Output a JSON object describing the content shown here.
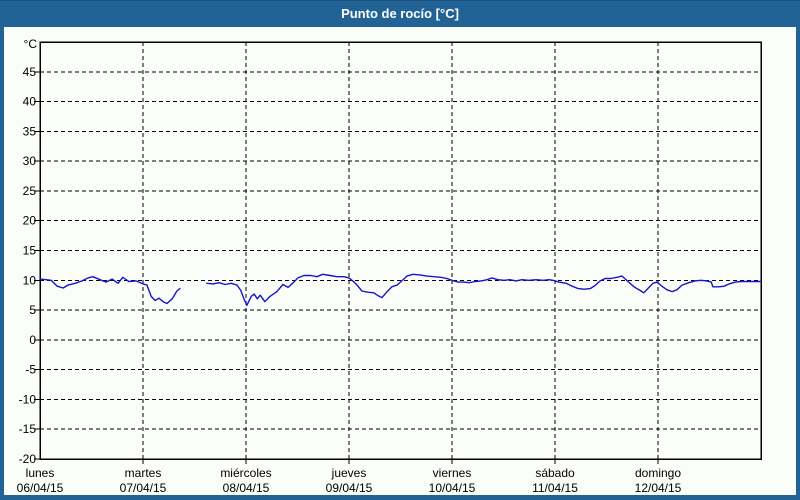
{
  "window": {
    "title": "Punto de rocío [°C]"
  },
  "colors": {
    "frame": "#206394",
    "frame_edge": "#17537d",
    "content_background": "#fbfdf8",
    "grid": "#000000",
    "text": "#000000",
    "title_text": "#ffffff",
    "line": "#1515cd"
  },
  "chart_data": {
    "type": "line",
    "title": "Punto de rocío [°C]",
    "ylabel": "°C",
    "ylim": [
      -20,
      50
    ],
    "y_ticks": [
      45,
      40,
      35,
      30,
      25,
      20,
      15,
      10,
      5,
      0,
      -5,
      -10,
      -15,
      -20
    ],
    "grid": "dashed",
    "legend": "none",
    "x_range_hours": [
      0,
      168
    ],
    "x_days": [
      {
        "name": "lunes",
        "date": "06/04/15"
      },
      {
        "name": "martes",
        "date": "07/04/15"
      },
      {
        "name": "miércoles",
        "date": "08/04/15"
      },
      {
        "name": "jueves",
        "date": "09/04/15"
      },
      {
        "name": "viernes",
        "date": "10/04/15"
      },
      {
        "name": "sábado",
        "date": "11/04/15"
      },
      {
        "name": "domingo",
        "date": "12/04/15"
      }
    ],
    "series": [
      {
        "name": "Punto de rocío",
        "color": "#1515cd",
        "points": [
          [
            0,
            10.2
          ],
          [
            1.4,
            10.1
          ],
          [
            2.6,
            10
          ],
          [
            4,
            9
          ],
          [
            5.4,
            8.7
          ],
          [
            6.5,
            9.2
          ],
          [
            8.2,
            9.5
          ],
          [
            9.8,
            9.9
          ],
          [
            11.2,
            10.4
          ],
          [
            12.3,
            10.6
          ],
          [
            14,
            10.1
          ],
          [
            15.4,
            9.7
          ],
          [
            16.8,
            10.2
          ],
          [
            18.2,
            9.5
          ],
          [
            19.3,
            10.5
          ],
          [
            20.7,
            9.8
          ],
          [
            22.4,
            9.9
          ],
          [
            24,
            9.4
          ],
          [
            24.9,
            9.2
          ],
          [
            25.9,
            7.3
          ],
          [
            26.8,
            6.6
          ],
          [
            27.7,
            7
          ],
          [
            28.7,
            6.4
          ],
          [
            29.6,
            6.1
          ],
          [
            30.8,
            6.9
          ],
          [
            31.9,
            8.2
          ],
          [
            32.6,
            8.6
          ],
          null,
          [
            38.9,
            9.5
          ],
          [
            40.3,
            9.4
          ],
          [
            41.7,
            9.6
          ],
          [
            43.1,
            9.3
          ],
          [
            44.5,
            9.5
          ],
          [
            45.9,
            9.2
          ],
          [
            46.8,
            8.3
          ],
          [
            47.5,
            6.9
          ],
          [
            48.2,
            5.8
          ],
          [
            49.2,
            7.3
          ],
          [
            49.9,
            7.7
          ],
          [
            50.6,
            6.9
          ],
          [
            51.3,
            7.5
          ],
          [
            52.4,
            6.4
          ],
          [
            53.6,
            7.3
          ],
          [
            55.2,
            8.1
          ],
          [
            56.6,
            9.3
          ],
          [
            57.8,
            8.8
          ],
          [
            59,
            9.6
          ],
          [
            60.1,
            10.4
          ],
          [
            61.5,
            10.8
          ],
          [
            63.1,
            10.8
          ],
          [
            64.5,
            10.6
          ],
          [
            65.9,
            11
          ],
          [
            67.6,
            10.8
          ],
          [
            69.2,
            10.6
          ],
          [
            70.8,
            10.6
          ],
          [
            72,
            10.4
          ],
          [
            73.2,
            9.7
          ],
          [
            74.1,
            9
          ],
          [
            75,
            8.2
          ],
          [
            76.4,
            8
          ],
          [
            77.8,
            7.9
          ],
          [
            78.8,
            7.4
          ],
          [
            79.7,
            7.1
          ],
          [
            80.9,
            8.1
          ],
          [
            82,
            8.9
          ],
          [
            83.2,
            9.2
          ],
          [
            84.3,
            9.9
          ],
          [
            85.5,
            10.7
          ],
          [
            86.9,
            11
          ],
          [
            88.5,
            10.9
          ],
          [
            90.2,
            10.7
          ],
          [
            91.8,
            10.6
          ],
          [
            93.4,
            10.5
          ],
          [
            94.8,
            10.3
          ],
          [
            96,
            10
          ],
          [
            97.4,
            9.7
          ],
          [
            98.8,
            9.7
          ],
          [
            100,
            9.6
          ],
          [
            101.4,
            9.8
          ],
          [
            102.8,
            9.9
          ],
          [
            104.2,
            10.1
          ],
          [
            105.3,
            10.4
          ],
          [
            106.7,
            10.1
          ],
          [
            108.1,
            10
          ],
          [
            109.5,
            10.1
          ],
          [
            110.9,
            9.9
          ],
          [
            112.3,
            10.1
          ],
          [
            113.9,
            10
          ],
          [
            115.6,
            10.1
          ],
          [
            117.2,
            10
          ],
          [
            118.6,
            10.1
          ],
          [
            119.5,
            10
          ],
          [
            120.9,
            9.7
          ],
          [
            122.6,
            9.5
          ],
          [
            124,
            9
          ],
          [
            125.4,
            8.6
          ],
          [
            126.8,
            8.5
          ],
          [
            128.2,
            8.6
          ],
          [
            129.3,
            9.1
          ],
          [
            130.5,
            9.9
          ],
          [
            131.7,
            10.3
          ],
          [
            133,
            10.3
          ],
          [
            134.4,
            10.5
          ],
          [
            135.6,
            10.7
          ],
          [
            137,
            9.8
          ],
          [
            138.4,
            8.9
          ],
          [
            139.8,
            8.3
          ],
          [
            140.7,
            7.9
          ],
          [
            141.9,
            8.8
          ],
          [
            142.8,
            9.5
          ],
          [
            143.8,
            9.7
          ],
          [
            144.9,
            9
          ],
          [
            146.1,
            8.4
          ],
          [
            147.3,
            8.1
          ],
          [
            148.4,
            8.4
          ],
          [
            149.6,
            9.2
          ],
          [
            151.2,
            9.6
          ],
          [
            152.6,
            9.9
          ],
          [
            154,
            10
          ],
          [
            155.4,
            9.9
          ],
          [
            156.4,
            9.7
          ],
          [
            156.8,
            8.9
          ],
          [
            158.2,
            8.9
          ],
          [
            159.4,
            9
          ],
          [
            160.6,
            9.4
          ],
          [
            162,
            9.7
          ],
          [
            163.4,
            9.8
          ],
          [
            165.3,
            9.8
          ],
          [
            166.9,
            9.8
          ],
          [
            168,
            9.8
          ]
        ]
      }
    ]
  }
}
